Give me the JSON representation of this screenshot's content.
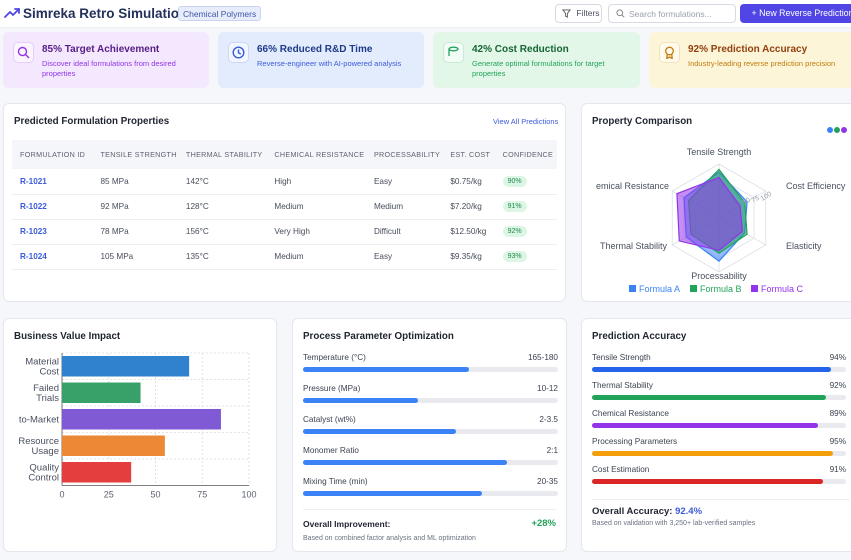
{
  "header": {
    "title": "Simreka Retro Simulation",
    "tag": "Chemical Polymers",
    "filters_label": "Filters",
    "search_placeholder": "Search formulations...",
    "new_button": "+ New Reverse Prediction"
  },
  "kpis": [
    {
      "title": "85% Target Achievement",
      "desc": "Discover ideal formulations from desired properties",
      "icon": "search-icon",
      "bg": "#f3e8fd",
      "accent": "#9333ea"
    },
    {
      "title": "66% Reduced R&D Time",
      "desc": "Reverse-engineer with AI-powered analysis",
      "icon": "clock-icon",
      "bg": "#e3ecfc",
      "accent": "#3b5bdb"
    },
    {
      "title": "42% Cost Reduction",
      "desc": "Generate optimal formulations for target properties",
      "icon": "database-icon",
      "bg": "#e3f7e8",
      "accent": "#22a35a"
    },
    {
      "title": "92% Prediction Accuracy",
      "desc": "Industry-leading reverse prediction precision",
      "icon": "award-icon",
      "bg": "#fdf5d8",
      "accent": "#c27c0e"
    }
  ],
  "predicted": {
    "title": "Predicted Formulation Properties",
    "view_all": "View All Predictions",
    "columns": [
      "FORMULATION ID",
      "TENSILE STRENGTH",
      "THERMAL STABILITY",
      "CHEMICAL RESISTANCE",
      "PROCESSABILITY",
      "EST. COST",
      "CONFIDENCE"
    ],
    "rows": [
      {
        "id": "R-1021",
        "tensile": "85 MPa",
        "thermal": "142°C",
        "chemical": "High",
        "process": "Easy",
        "cost": "$0.75/kg",
        "confidence": "90%"
      },
      {
        "id": "R-1022",
        "tensile": "92 MPa",
        "thermal": "128°C",
        "chemical": "Medium",
        "process": "Medium",
        "cost": "$7.20/kg",
        "confidence": "91%"
      },
      {
        "id": "R-1023",
        "tensile": "78 MPa",
        "thermal": "156°C",
        "chemical": "Very High",
        "process": "Difficult",
        "cost": "$12.50/kg",
        "confidence": "92%"
      },
      {
        "id": "R-1024",
        "tensile": "105 MPa",
        "thermal": "135°C",
        "chemical": "Medium",
        "process": "Easy",
        "cost": "$9.35/kg",
        "confidence": "93%"
      }
    ]
  },
  "comparison": {
    "title": "Property Comparison",
    "dot_colors": [
      "#3b82f6",
      "#22a35a",
      "#9333ea"
    ]
  },
  "business": {
    "title": "Business Value Impact"
  },
  "process": {
    "title": "Process Parameter Optimization",
    "params": [
      {
        "label": "Temperature (°C)",
        "range": "165-180",
        "fill": 0.65,
        "color": "#3b82f6"
      },
      {
        "label": "Pressure (MPa)",
        "range": "10-12",
        "fill": 0.45,
        "color": "#3b82f6"
      },
      {
        "label": "Catalyst (wt%)",
        "range": "2-3.5",
        "fill": 0.6,
        "color": "#3b82f6"
      },
      {
        "label": "Monomer Ratio",
        "range": "2:1",
        "fill": 0.8,
        "color": "#3b82f6"
      },
      {
        "label": "Mixing Time (min)",
        "range": "20-35",
        "fill": 0.7,
        "color": "#3b82f6"
      }
    ],
    "overall_label": "Overall Improvement:",
    "overall_value": "+28%",
    "overall_note": "Based on combined factor analysis and ML optimization"
  },
  "accuracy": {
    "title": "Prediction Accuracy",
    "items": [
      {
        "label": "Tensile Strength",
        "value": "94%",
        "fill": 0.94,
        "color": "#2563eb"
      },
      {
        "label": "Thermal Stability",
        "value": "92%",
        "fill": 0.92,
        "color": "#22a35a"
      },
      {
        "label": "Chemical Resistance",
        "value": "89%",
        "fill": 0.89,
        "color": "#9333ea"
      },
      {
        "label": "Processing Parameters",
        "value": "95%",
        "fill": 0.95,
        "color": "#f59e0b"
      },
      {
        "label": "Cost Estimation",
        "value": "91%",
        "fill": 0.91,
        "color": "#dc2626"
      }
    ],
    "overall_prefix": "Overall Accuracy:",
    "overall_value": "92.4%",
    "overall_note": "Based on validation with 3,250+ lab-verified samples"
  },
  "chart_data": [
    {
      "type": "radar",
      "axes": [
        "Tensile Strength",
        "Cost Efficiency",
        "Elasticity",
        "Processability",
        "Thermal Stability",
        "Chemical Resistance"
      ],
      "axis_labels_visible": [
        "Tensile Strength",
        "Cost Efficiency",
        "Elasticity",
        "Processability",
        "Thermal Stability",
        "emical Resistance"
      ],
      "rmax": 100,
      "series": [
        {
          "name": "Formula A",
          "color": "#3b82f6",
          "values": [
            85,
            60,
            55,
            80,
            70,
            75
          ]
        },
        {
          "name": "Formula B",
          "color": "#22a35a",
          "values": [
            90,
            55,
            60,
            65,
            60,
            65
          ]
        },
        {
          "name": "Formula C",
          "color": "#9333ea",
          "values": [
            75,
            45,
            50,
            60,
            85,
            90
          ]
        }
      ],
      "legend": "bottom"
    },
    {
      "type": "bar",
      "orientation": "horizontal",
      "categories": [
        [
          "Material",
          "Cost"
        ],
        [
          "Failed",
          "Trials"
        ],
        [
          "to-Market"
        ],
        [
          "Resource",
          "Usage"
        ],
        [
          "Quality",
          "Control"
        ]
      ],
      "values": [
        68,
        42,
        85,
        55,
        37
      ],
      "colors": [
        "#3182ce",
        "#38a169",
        "#805ad5",
        "#ed8936",
        "#e53e3e"
      ],
      "xlim": [
        0,
        100
      ],
      "xticks": [
        0,
        25,
        50,
        75,
        100
      ],
      "grid": true
    }
  ]
}
